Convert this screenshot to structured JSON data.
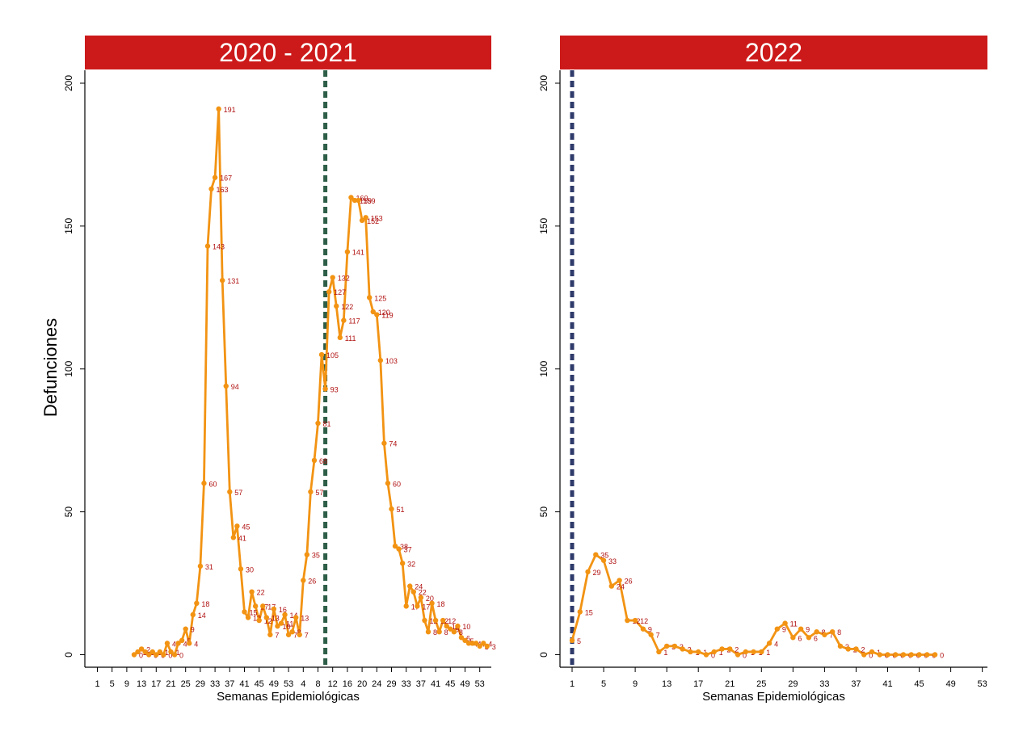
{
  "figure": {
    "ylabel": "Defunciones",
    "series_color": "#f29313",
    "label_color": "#b01010",
    "header_color": "#cc1a1a"
  },
  "chart_data": [
    {
      "type": "line",
      "panel_title": "2020 - 2021",
      "xlabel": "Semanas Epidemiológicas",
      "ylabel": "Defunciones",
      "ylim": [
        0,
        200
      ],
      "yticks": [
        0,
        50,
        100,
        150,
        200
      ],
      "xtick_labels": [
        "1",
        "5",
        "9",
        "13",
        "17",
        "21",
        "25",
        "29",
        "33",
        "37",
        "41",
        "45",
        "49",
        "53",
        "4",
        "8",
        "12",
        "16",
        "20",
        "24",
        "29",
        "33",
        "37",
        "41",
        "45",
        "49",
        "53"
      ],
      "vline": {
        "index": 63,
        "color": "#2e5e47"
      },
      "series": [
        {
          "start_index": 11,
          "values": [
            0,
            1,
            2,
            1,
            0,
            1,
            0,
            1,
            0,
            4,
            1,
            0,
            4,
            5,
            9,
            4,
            14,
            18,
            31,
            60,
            143,
            163,
            167,
            191,
            131,
            94,
            57,
            41,
            45,
            30,
            15,
            13,
            22,
            17,
            12,
            17,
            13,
            7,
            16,
            10,
            11,
            14,
            7,
            8,
            13,
            7,
            26,
            35,
            57,
            68,
            81,
            105,
            93,
            127,
            132,
            122,
            111,
            117,
            141,
            160,
            159,
            159,
            152,
            153,
            125,
            120,
            119,
            103,
            74,
            60,
            51,
            38,
            37,
            32,
            17,
            24,
            22,
            17,
            20,
            12,
            8,
            18,
            12,
            8,
            12,
            10,
            9,
            8,
            10,
            6,
            5,
            4,
            4,
            4,
            3,
            4,
            3
          ]
        }
      ]
    },
    {
      "type": "line",
      "panel_title": "2022",
      "xlabel": "Semanas Epidemiológicas",
      "ylabel": "",
      "ylim": [
        0,
        200
      ],
      "yticks": [
        0,
        50,
        100,
        150,
        200
      ],
      "xtick_labels": [
        "1",
        "5",
        "9",
        "13",
        "17",
        "21",
        "25",
        "29",
        "33",
        "37",
        "41",
        "45",
        "49",
        "53"
      ],
      "vline": {
        "index": 1,
        "color": "#2e3a6a"
      },
      "series": [
        {
          "start_index": 1,
          "values": [
            5,
            15,
            29,
            35,
            33,
            24,
            26,
            12,
            12,
            9,
            7,
            1,
            3,
            3,
            2,
            1,
            1,
            0,
            1,
            2,
            2,
            0,
            1,
            1,
            1,
            4,
            9,
            11,
            6,
            9,
            6,
            8,
            7,
            8,
            3,
            2,
            2,
            0,
            1,
            0,
            0,
            0,
            0,
            0,
            0,
            0,
            0
          ]
        }
      ]
    }
  ]
}
